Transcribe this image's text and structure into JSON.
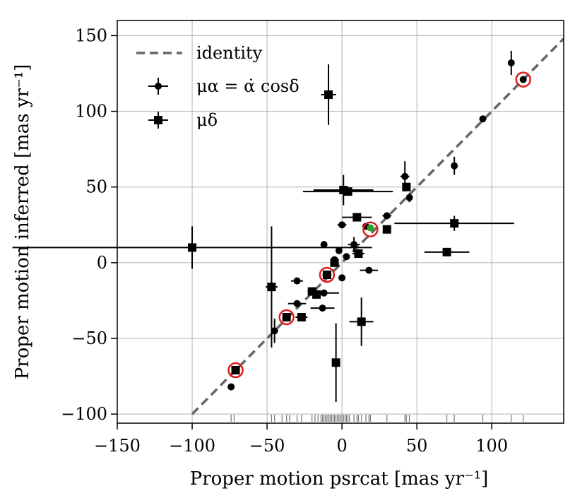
{
  "chart_data": {
    "type": "scatter",
    "xlabel": "Proper motion psrcat [mas yr⁻¹]",
    "ylabel": "Proper motion inferred [mas yr⁻¹]",
    "xlim": [
      -150,
      148
    ],
    "ylim": [
      -106,
      160
    ],
    "xticks": [
      -150,
      -100,
      -50,
      0,
      50,
      100
    ],
    "xtick_labels": [
      "−150",
      "−100",
      "−50",
      "0",
      "50",
      "100"
    ],
    "yticks": [
      -100,
      -50,
      0,
      50,
      100,
      150
    ],
    "ytick_labels": [
      "−100",
      "−50",
      "0",
      "50",
      "100",
      "150"
    ],
    "grid": true,
    "legend_position": "top-left",
    "legend": [
      {
        "label": "identity",
        "style": "dashed-line"
      },
      {
        "label": "μα = α̇ cosδ",
        "style": "circle-errorbar"
      },
      {
        "label": "μδ",
        "style": "square-errorbar"
      }
    ],
    "identity_line": {
      "x": [
        -100,
        148
      ],
      "y": [
        -100,
        148
      ],
      "color": "#666666"
    },
    "series": [
      {
        "name": "μα = α̇ cosδ",
        "marker": "circle",
        "points": [
          {
            "x": 113,
            "y": 132,
            "xerr": 0,
            "yerr": 8
          },
          {
            "x": 121,
            "y": 121,
            "xerr": 0,
            "yerr": 0
          },
          {
            "x": 94,
            "y": 95,
            "xerr": 0,
            "yerr": 0
          },
          {
            "x": 75,
            "y": 64,
            "xerr": 0,
            "yerr": 6
          },
          {
            "x": 42,
            "y": 57,
            "xerr": 3,
            "yerr": 10
          },
          {
            "x": 45,
            "y": 43,
            "xerr": 0,
            "yerr": 3
          },
          {
            "x": 30,
            "y": 31,
            "xerr": 3,
            "yerr": 0
          },
          {
            "x": 16,
            "y": 24,
            "xerr": 0,
            "yerr": 0
          },
          {
            "x": 0,
            "y": 25,
            "xerr": 3,
            "yerr": 0
          },
          {
            "x": -12,
            "y": 12,
            "xerr": 0,
            "yerr": 0
          },
          {
            "x": 8,
            "y": 12,
            "xerr": 4,
            "yerr": 5
          },
          {
            "x": -2,
            "y": 8,
            "xerr": 0,
            "yerr": 0
          },
          {
            "x": 3,
            "y": 4,
            "xerr": 0,
            "yerr": 0
          },
          {
            "x": -5,
            "y": 2,
            "xerr": 0,
            "yerr": 0
          },
          {
            "x": 18,
            "y": -5,
            "xerr": 6,
            "yerr": 0
          },
          {
            "x": -30,
            "y": -12,
            "xerr": 4,
            "yerr": 0
          },
          {
            "x": 0,
            "y": -10,
            "xerr": 0,
            "yerr": 0
          },
          {
            "x": -12,
            "y": -20,
            "xerr": 10,
            "yerr": 0
          },
          {
            "x": -30,
            "y": -27,
            "xerr": 6,
            "yerr": 0
          },
          {
            "x": -13,
            "y": -30,
            "xerr": 8,
            "yerr": 0
          },
          {
            "x": -45,
            "y": -45,
            "xerr": 0,
            "yerr": 8
          },
          {
            "x": -74,
            "y": -82,
            "xerr": 0,
            "yerr": 0
          }
        ]
      },
      {
        "name": "μδ",
        "marker": "square",
        "points": [
          {
            "x": -9,
            "y": 111,
            "xerr": 5,
            "yerr": 20
          },
          {
            "x": 1,
            "y": 48,
            "xerr": 20,
            "yerr": 10
          },
          {
            "x": 4,
            "y": 47,
            "xerr": 30,
            "yerr": 0
          },
          {
            "x": 43,
            "y": 50,
            "xerr": 0,
            "yerr": 0
          },
          {
            "x": 10,
            "y": 30,
            "xerr": 10,
            "yerr": 0
          },
          {
            "x": 75,
            "y": 26,
            "xerr": 40,
            "yerr": 5
          },
          {
            "x": 30,
            "y": 22,
            "xerr": 0,
            "yerr": 0
          },
          {
            "x": -100,
            "y": 10,
            "xerr": 120,
            "yerr": 14
          },
          {
            "x": 70,
            "y": 7,
            "xerr": 15,
            "yerr": 0
          },
          {
            "x": 11,
            "y": 6,
            "xerr": 4,
            "yerr": 0
          },
          {
            "x": -5,
            "y": 0,
            "xerr": 0,
            "yerr": 0
          },
          {
            "x": -10,
            "y": -8,
            "xerr": 3,
            "yerr": 0
          },
          {
            "x": -47,
            "y": -16,
            "xerr": 4,
            "yerr": 40
          },
          {
            "x": -20,
            "y": -19,
            "xerr": 3,
            "yerr": 0
          },
          {
            "x": -17,
            "y": -21,
            "xerr": 5,
            "yerr": 0
          },
          {
            "x": -37,
            "y": -36,
            "xerr": 0,
            "yerr": 0
          },
          {
            "x": -27,
            "y": -36,
            "xerr": 4,
            "yerr": 0
          },
          {
            "x": 13,
            "y": -39,
            "xerr": 8,
            "yerr": 16
          },
          {
            "x": -4,
            "y": -66,
            "xerr": 0,
            "yerr": 26
          },
          {
            "x": -71,
            "y": -71,
            "xerr": 0,
            "yerr": 0
          }
        ]
      }
    ],
    "highlighted_points": [
      {
        "x": 121,
        "y": 121,
        "color": "#e31a1c"
      },
      {
        "x": 19,
        "y": 22,
        "color": "#e31a1c"
      },
      {
        "x": -10,
        "y": -8,
        "color": "#e31a1c"
      },
      {
        "x": -37,
        "y": -36,
        "color": "#e31a1c"
      },
      {
        "x": -71,
        "y": -71,
        "color": "#e31a1c"
      }
    ],
    "green_points": [
      {
        "x": 19,
        "y": 23,
        "color": "#2ca02c"
      }
    ],
    "rug_x": [
      -74,
      -72,
      -47,
      -45,
      -40,
      -37,
      -35,
      -30,
      -27,
      -20,
      -18,
      -16,
      -14,
      -13,
      -12,
      -11,
      -10,
      -9,
      -8,
      -7,
      -6,
      -5,
      -4,
      -3,
      -2,
      -1,
      0,
      1,
      2,
      3,
      4,
      5,
      8,
      10,
      11,
      13,
      16,
      18,
      19,
      30,
      42,
      43,
      45,
      70,
      75,
      94,
      113,
      121
    ]
  }
}
